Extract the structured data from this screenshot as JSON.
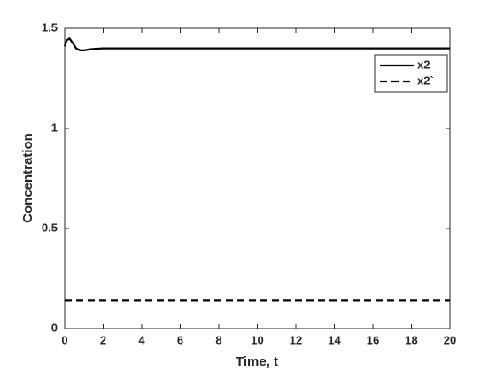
{
  "chart_data": {
    "type": "line",
    "xlabel": "Time, t",
    "ylabel": "Concentration",
    "x": [
      0,
      0.1,
      0.25,
      0.4,
      0.6,
      0.8,
      1,
      1.3,
      1.6,
      2,
      3,
      20
    ],
    "series": [
      {
        "name": "x2",
        "color": "#000000",
        "line_style": "solid",
        "values": [
          1.41,
          1.44,
          1.45,
          1.43,
          1.4,
          1.39,
          1.39,
          1.395,
          1.398,
          1.4,
          1.4,
          1.4
        ]
      },
      {
        "name": "x2`",
        "color": "#000000",
        "line_style": "dashed",
        "values": [
          0.14,
          0.14,
          0.14,
          0.14,
          0.14,
          0.14,
          0.14,
          0.14,
          0.14,
          0.14,
          0.14,
          0.14
        ]
      }
    ],
    "xlim": [
      0,
      20
    ],
    "xticks": [
      0,
      2,
      4,
      6,
      8,
      10,
      12,
      14,
      16,
      18,
      20
    ],
    "ylim": [
      0,
      1.5
    ],
    "yticks": [
      0,
      0.5,
      1,
      1.5
    ],
    "grid": false,
    "legend_position": "upper-right"
  }
}
